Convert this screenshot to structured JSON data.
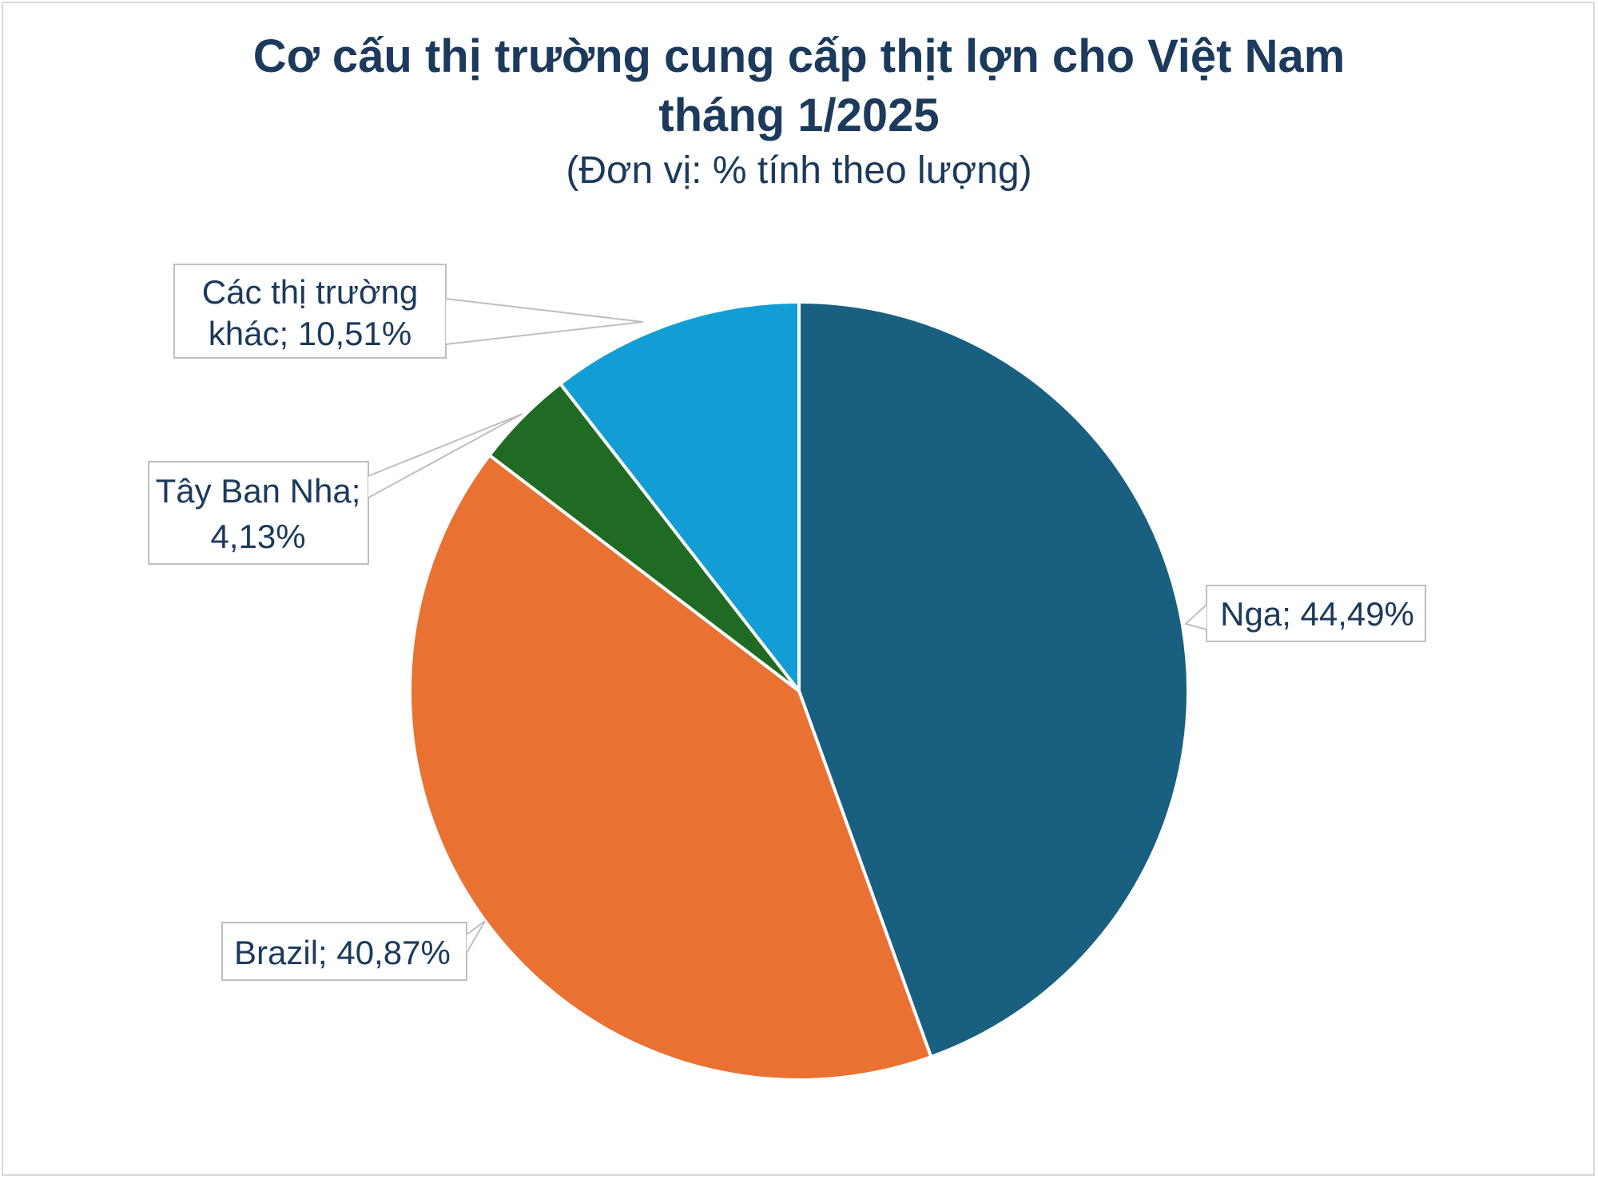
{
  "title_line1": "Cơ cấu thị trường cung cấp thịt lợn cho Việt Nam",
  "title_line2": "tháng 1/2025",
  "subtitle": "(Đơn vị: % tính theo lượng)",
  "chart_data": {
    "type": "pie",
    "title": "Cơ cấu thị trường cung cấp thịt lợn cho Việt Nam tháng 1/2025",
    "subtitle": "(Đơn vị: % tính theo lượng)",
    "categories": [
      "Nga",
      "Brazil",
      "Tây Ban Nha",
      "Các thị trường khác"
    ],
    "values": [
      44.49,
      40.87,
      4.13,
      10.51
    ],
    "colors": [
      "#185f80",
      "#e97132",
      "#1f6b24",
      "#129ed5"
    ],
    "labels": [
      [
        "Nga; 44,49%"
      ],
      [
        "Brazil; 40,87%"
      ],
      [
        "Tây Ban Nha;",
        "4,13%"
      ],
      [
        "Các thị trường",
        "khác; 10,51%"
      ]
    ],
    "start_angle": "top (12 o'clock)",
    "direction": "clockwise",
    "legend": "none"
  }
}
